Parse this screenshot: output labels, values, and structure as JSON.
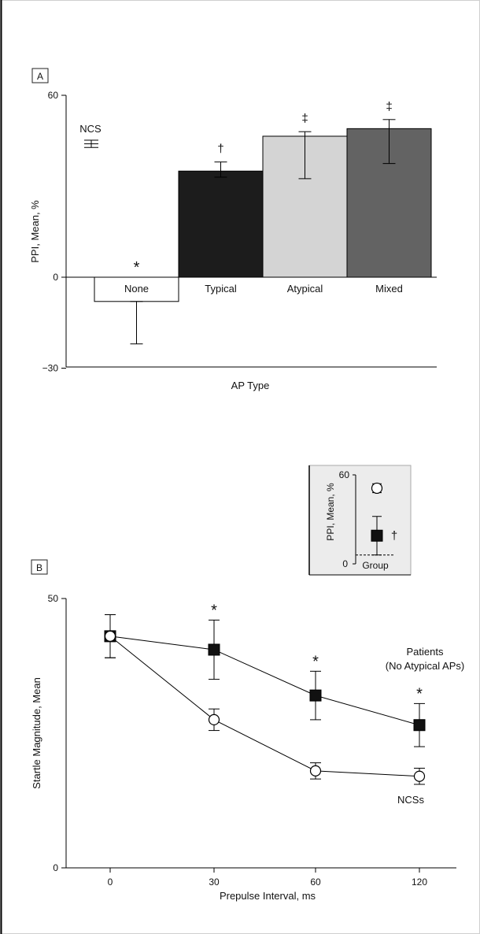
{
  "panel_a": {
    "label": "A",
    "ylabel": "PPI, Mean, %",
    "xlabel": "AP Type",
    "ncs_label": "NCS",
    "ticks": [
      {
        "label": "60",
        "value": 60
      },
      {
        "label": "0",
        "value": 0
      },
      {
        "label": "−30",
        "value": -30
      }
    ]
  },
  "panel_b": {
    "label": "B",
    "ylabel": "Startle Magnitude, Mean",
    "xlabel": "Prepulse Interval, ms",
    "series_labels": {
      "patients_line1": "Patients",
      "patients_line2": "(No Atypical APs)",
      "ncs": "NCSs"
    },
    "yticks": [
      {
        "label": "50",
        "value": 50
      },
      {
        "label": "0",
        "value": 0
      }
    ],
    "xticks": [
      "0",
      "30",
      "60",
      "120"
    ]
  },
  "inset": {
    "ylabel": "PPI, Mean, %",
    "xlabel": "Group",
    "ytick_top": "60",
    "ytick_bottom": "0"
  },
  "chart_data": [
    {
      "type": "bar",
      "panel": "A",
      "xlabel": "AP Type",
      "ylabel": "PPI, Mean, %",
      "ylim": [
        -30,
        60
      ],
      "categories": [
        "None",
        "Typical",
        "Atypical",
        "Mixed"
      ],
      "values": [
        -8,
        35,
        46.5,
        49
      ],
      "error_low": [
        -22,
        33,
        32.5,
        37.5
      ],
      "error_high": [
        -8,
        38,
        48,
        52
      ],
      "markers": [
        "*",
        "†",
        "‡",
        "‡"
      ],
      "colors": [
        "#ffffff",
        "#1c1c1c",
        "#d4d4d4",
        "#636363"
      ],
      "reference": {
        "name": "NCS",
        "value": 44,
        "error": 1.2
      }
    },
    {
      "type": "line",
      "panel": "B",
      "xlabel": "Prepulse Interval, ms",
      "ylabel": "Startle Magnitude, Mean",
      "ylim": [
        0,
        50
      ],
      "x": [
        "0",
        "30",
        "60",
        "120"
      ],
      "series": [
        {
          "name": "Patients (No Atypical APs)",
          "marker": "filled-square",
          "values": [
            43,
            40.5,
            32,
            26.5
          ],
          "error": [
            4,
            5.5,
            4.5,
            4
          ],
          "annotations": [
            "",
            "*",
            "*",
            "*"
          ]
        },
        {
          "name": "NCSs",
          "marker": "open-circle",
          "values": [
            43,
            27.5,
            18,
            17
          ],
          "error": [
            4,
            2,
            1.5,
            1.5
          ],
          "annotations": [
            "",
            "",
            "",
            ""
          ]
        }
      ]
    },
    {
      "type": "scatter",
      "panel": "inset",
      "xlabel": "Group",
      "ylabel": "PPI, Mean, %",
      "ylim": [
        0,
        60
      ],
      "reference_line": 6,
      "points": [
        {
          "name": "NCS",
          "marker": "open-circle",
          "value": 51,
          "error": 3
        },
        {
          "name": "Patients",
          "marker": "filled-square",
          "value": 19,
          "error": 13,
          "annotation": "†"
        }
      ]
    }
  ]
}
